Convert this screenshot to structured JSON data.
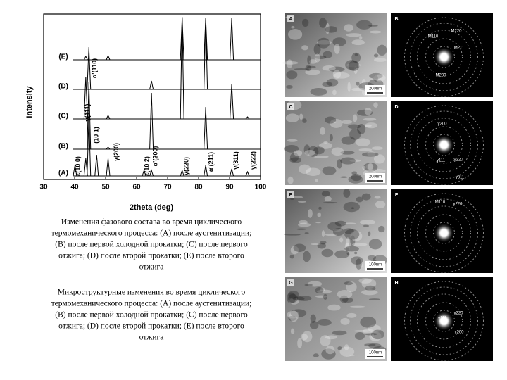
{
  "chart_data": {
    "type": "line",
    "xlabel": "2theta (deg)",
    "ylabel": "Intensity",
    "xlim": [
      30,
      100
    ],
    "xticks": [
      30,
      40,
      50,
      60,
      70,
      80,
      90,
      100
    ],
    "x": [
      40.1,
      43.6,
      44.6,
      47.1,
      50.8,
      62.4,
      64.8,
      74.7,
      82.3,
      90.7,
      95.8
    ],
    "series": [
      {
        "name": "(A)",
        "color": "#000000",
        "values": [
          15,
          25,
          85,
          30,
          25,
          8,
          8,
          8,
          15,
          10,
          6
        ]
      },
      {
        "name": "(B)",
        "color": "#000000",
        "values": [
          0,
          0,
          95,
          0,
          3,
          0,
          80,
          0,
          60,
          0,
          0
        ]
      },
      {
        "name": "(C)",
        "color": "#000000",
        "values": [
          0,
          60,
          0,
          0,
          5,
          0,
          0,
          145,
          0,
          50,
          3
        ]
      },
      {
        "name": "(D)",
        "color": "#000000",
        "values": [
          0,
          0,
          60,
          0,
          0,
          0,
          12,
          0,
          100,
          0,
          0
        ]
      },
      {
        "name": "(E)",
        "color": "#000000",
        "values": [
          0,
          5,
          0,
          0,
          6,
          0,
          0,
          60,
          60,
          60,
          0
        ]
      }
    ],
    "annotations": [
      {
        "text": "ε(10 0)",
        "x": 40.3
      },
      {
        "text": "α'(110)",
        "x": 45.6
      },
      {
        "text": "γ(111)",
        "x": 43.3
      },
      {
        "text": "(10 1)",
        "x": 46.2
      },
      {
        "text": "γ(200)",
        "x": 52.6
      },
      {
        "text": "ε(10 2)",
        "x": 62.5
      },
      {
        "text": "α'(200)",
        "x": 65.2
      },
      {
        "text": "γ(220)",
        "x": 75.3
      },
      {
        "text": "α'(211)",
        "x": 83.2
      },
      {
        "text": "γ(311)",
        "x": 91.3
      },
      {
        "text": "γ(222)",
        "x": 96.8
      }
    ]
  },
  "captions": [
    [
      "Изменения фазового состава во время циклического",
      "термомеханического процесса: (A) после аустенитизации;",
      "(B) после первой холодной прокатки; (C) после первого",
      "отжига; (D) после второй прокатки; (E) после второго",
      "отжига"
    ],
    [
      "Микроструктурные изменения во время циклического",
      "термомеханического процесса: (A) после аустенитизации;",
      "(B) после первой холодной прокатки; (C) после первого",
      "отжига; (D) после второй прокатки; (E) после второго",
      "отжига"
    ]
  ],
  "micrographs": [
    {
      "label": "A",
      "scale": "200nm"
    },
    {
      "label": "C",
      "scale": "200nm"
    },
    {
      "label": "E",
      "scale": "100nm"
    },
    {
      "label": "G",
      "scale": "100nm"
    }
  ],
  "diffraction": [
    {
      "label": "B",
      "spots": [
        "M220",
        "M110",
        "M211",
        "M200"
      ]
    },
    {
      "label": "D",
      "spots": [
        "γ200",
        "γ111",
        "γ220",
        "γ311"
      ]
    },
    {
      "label": "F",
      "spots": [
        "M110",
        "γ220"
      ]
    },
    {
      "label": "H",
      "spots": [
        "γ111",
        "γ220",
        "γ200"
      ]
    }
  ]
}
